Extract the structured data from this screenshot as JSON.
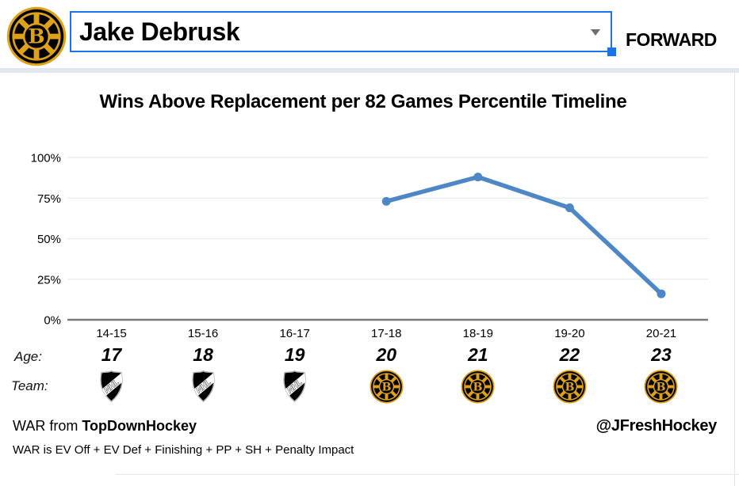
{
  "header": {
    "team_logo_name": "bruins-spoked-b-logo",
    "player_select": {
      "value": "Jake Debrusk"
    },
    "position_label": "FORWARD"
  },
  "chart_data": {
    "type": "line",
    "title": "Wins Above Replacement per 82 Games Percentile Timeline",
    "categories": [
      "14-15",
      "15-16",
      "16-17",
      "17-18",
      "18-19",
      "19-20",
      "20-21"
    ],
    "values": [
      null,
      null,
      null,
      73,
      88,
      69,
      16
    ],
    "y_ticks": [
      0,
      25,
      50,
      75,
      100
    ],
    "y_tick_labels": [
      "0%",
      "25%",
      "50%",
      "75%",
      "100%"
    ],
    "ylim": [
      0,
      100
    ],
    "grid": true,
    "legend_position": "none",
    "line_color": "#4e87c5",
    "axis_color": "#7a7a7a",
    "grid_color": "#eaeaea"
  },
  "age_row": {
    "label": "Age:",
    "values": [
      "17",
      "18",
      "19",
      "20",
      "21",
      "22",
      "23"
    ]
  },
  "team_row": {
    "label": "Team:",
    "teams": [
      "NHL",
      "NHL",
      "NHL",
      "BOS",
      "BOS",
      "BOS",
      "BOS"
    ],
    "logo_names": {
      "NHL": "nhl-shield-logo",
      "BOS": "bruins-spoked-b-logo"
    }
  },
  "footer": {
    "credit_prefix": "WAR from ",
    "credit_source": "TopDownHockey",
    "handle": "@JFreshHockey",
    "formula": "WAR is EV Off + EV Def + Finishing + PP + SH + Penalty Impact"
  }
}
